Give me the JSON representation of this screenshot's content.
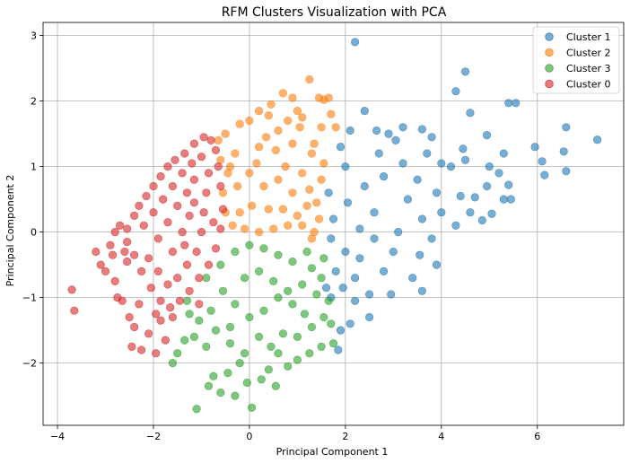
{
  "chart_data": {
    "type": "scatter",
    "title": "RFM Clusters Visualization with PCA",
    "xlabel": "Principal Component 1",
    "ylabel": "Principal Component 2",
    "xlim": [
      -4.3,
      7.8
    ],
    "ylim": [
      -2.95,
      3.2
    ],
    "xticks": [
      -4,
      -2,
      0,
      2,
      4,
      6
    ],
    "yticks": [
      -2,
      -1,
      0,
      1,
      2,
      3
    ],
    "grid": true,
    "legend_position": "top-right",
    "series": [
      {
        "name": "Cluster 1",
        "color": "#1f77b4",
        "points": [
          [
            2.2,
            2.9
          ],
          [
            4.5,
            2.45
          ],
          [
            4.3,
            2.15
          ],
          [
            4.6,
            1.82
          ],
          [
            5.4,
            1.97
          ],
          [
            5.55,
            1.97
          ],
          [
            6.6,
            1.6
          ],
          [
            7.25,
            1.41
          ],
          [
            5.95,
            1.3
          ],
          [
            6.1,
            1.08
          ],
          [
            6.15,
            0.87
          ],
          [
            6.6,
            0.93
          ],
          [
            6.55,
            1.23
          ],
          [
            5.3,
            1.2
          ],
          [
            5.0,
            1.0
          ],
          [
            5.4,
            0.72
          ],
          [
            5.45,
            0.5
          ],
          [
            5.3,
            0.5
          ],
          [
            4.95,
            1.48
          ],
          [
            4.45,
            1.27
          ],
          [
            3.6,
            1.57
          ],
          [
            3.7,
            1.2
          ],
          [
            3.2,
            1.6
          ],
          [
            2.4,
            1.85
          ],
          [
            2.9,
            1.5
          ],
          [
            3.05,
            1.4
          ],
          [
            4.0,
            1.05
          ],
          [
            4.7,
            0.53
          ],
          [
            5.05,
            0.28
          ],
          [
            4.85,
            0.18
          ],
          [
            4.6,
            0.3
          ],
          [
            4.3,
            0.1
          ],
          [
            3.8,
            -0.1
          ],
          [
            4.4,
            0.55
          ],
          [
            3.5,
            0.8
          ],
          [
            2.7,
            1.2
          ],
          [
            4.2,
            1.0
          ],
          [
            3.9,
            0.6
          ],
          [
            3.6,
            0.2
          ],
          [
            3.3,
            0.5
          ],
          [
            2.6,
            0.3
          ],
          [
            2.3,
            0.05
          ],
          [
            3.0,
            -0.3
          ],
          [
            2.8,
            -0.6
          ],
          [
            3.4,
            -0.7
          ],
          [
            3.9,
            -0.5
          ],
          [
            2.5,
            -0.95
          ],
          [
            2.2,
            -1.05
          ],
          [
            2.5,
            -1.3
          ],
          [
            2.1,
            -1.4
          ],
          [
            1.9,
            -1.5
          ],
          [
            1.85,
            -1.8
          ],
          [
            2.2,
            -0.7
          ],
          [
            2.0,
            -0.3
          ],
          [
            2.4,
            0.7
          ],
          [
            2.0,
            1.0
          ],
          [
            1.9,
            1.3
          ],
          [
            2.1,
            1.55
          ],
          [
            1.75,
            0.2
          ],
          [
            1.65,
            0.6
          ],
          [
            1.7,
            -0.1
          ],
          [
            1.8,
            -0.6
          ],
          [
            1.6,
            -0.85
          ],
          [
            1.7,
            -1.0
          ],
          [
            3.1,
            0.0
          ],
          [
            3.55,
            -0.35
          ],
          [
            4.0,
            0.3
          ],
          [
            4.95,
            0.7
          ],
          [
            5.2,
            0.9
          ],
          [
            3.2,
            1.05
          ],
          [
            2.8,
            0.85
          ],
          [
            2.6,
            -0.1
          ],
          [
            3.6,
            -0.9
          ],
          [
            2.95,
            -0.95
          ],
          [
            2.3,
            -0.4
          ],
          [
            2.05,
            0.45
          ],
          [
            1.95,
            -0.85
          ],
          [
            3.8,
            1.45
          ],
          [
            4.5,
            1.1
          ],
          [
            2.65,
            1.55
          ]
        ]
      },
      {
        "name": "Cluster 2",
        "color": "#ff7f0e",
        "points": [
          [
            1.25,
            2.33
          ],
          [
            1.55,
            2.02
          ],
          [
            1.45,
            2.05
          ],
          [
            1.65,
            2.05
          ],
          [
            0.7,
            2.12
          ],
          [
            0.9,
            2.05
          ],
          [
            0.45,
            1.95
          ],
          [
            0.2,
            1.85
          ],
          [
            0.4,
            1.78
          ],
          [
            1.0,
            1.85
          ],
          [
            1.1,
            1.75
          ],
          [
            0.8,
            1.7
          ],
          [
            1.5,
            1.6
          ],
          [
            1.7,
            1.8
          ],
          [
            1.8,
            1.6
          ],
          [
            1.35,
            1.35
          ],
          [
            1.05,
            1.6
          ],
          [
            0.6,
            1.55
          ],
          [
            0.0,
            1.7
          ],
          [
            -0.2,
            1.65
          ],
          [
            -0.5,
            1.5
          ],
          [
            -0.65,
            1.4
          ],
          [
            -0.3,
            1.2
          ],
          [
            0.2,
            1.3
          ],
          [
            0.55,
            1.25
          ],
          [
            0.9,
            1.35
          ],
          [
            1.3,
            1.2
          ],
          [
            1.55,
            1.05
          ],
          [
            1.5,
            0.8
          ],
          [
            1.4,
            0.45
          ],
          [
            1.45,
            0.2
          ],
          [
            1.35,
            0.0
          ],
          [
            1.3,
            -0.1
          ],
          [
            1.1,
            0.1
          ],
          [
            0.8,
            0.1
          ],
          [
            0.5,
            0.05
          ],
          [
            0.2,
            0.0
          ],
          [
            -0.1,
            0.05
          ],
          [
            -0.35,
            0.1
          ],
          [
            -0.5,
            0.3
          ],
          [
            -0.55,
            0.6
          ],
          [
            -0.45,
            0.9
          ],
          [
            -0.25,
            0.7
          ],
          [
            0.0,
            0.9
          ],
          [
            0.3,
            0.7
          ],
          [
            0.6,
            0.8
          ],
          [
            0.9,
            0.6
          ],
          [
            1.1,
            0.9
          ],
          [
            1.2,
            0.4
          ],
          [
            0.4,
            0.35
          ],
          [
            0.05,
            0.4
          ],
          [
            -0.2,
            0.3
          ],
          [
            0.7,
            0.35
          ],
          [
            1.0,
            0.25
          ],
          [
            -0.4,
            1.0
          ],
          [
            0.15,
            1.05
          ],
          [
            0.75,
            1.0
          ],
          [
            1.25,
            0.65
          ],
          [
            -0.6,
            1.1
          ],
          [
            0.35,
            1.45
          ]
        ]
      },
      {
        "name": "Cluster 3",
        "color": "#2ca02c",
        "points": [
          [
            -1.1,
            -2.7
          ],
          [
            0.05,
            -2.68
          ],
          [
            -0.85,
            -2.35
          ],
          [
            -0.6,
            -2.45
          ],
          [
            -0.3,
            -2.5
          ],
          [
            -0.75,
            -2.2
          ],
          [
            -0.45,
            -2.15
          ],
          [
            -0.05,
            -2.3
          ],
          [
            0.25,
            -2.25
          ],
          [
            0.55,
            -2.35
          ],
          [
            0.4,
            -2.1
          ],
          [
            0.8,
            -2.05
          ],
          [
            1.0,
            -1.95
          ],
          [
            1.25,
            -1.85
          ],
          [
            1.5,
            -1.75
          ],
          [
            1.75,
            -1.7
          ],
          [
            -1.6,
            -2.0
          ],
          [
            -1.5,
            -1.85
          ],
          [
            -1.35,
            -1.65
          ],
          [
            -1.15,
            -1.6
          ],
          [
            -0.9,
            -1.75
          ],
          [
            -0.7,
            -1.5
          ],
          [
            -0.4,
            -1.7
          ],
          [
            -0.1,
            -1.85
          ],
          [
            0.2,
            -1.6
          ],
          [
            0.45,
            -1.75
          ],
          [
            0.7,
            -1.55
          ],
          [
            1.0,
            -1.6
          ],
          [
            1.3,
            -1.45
          ],
          [
            1.55,
            -1.3
          ],
          [
            1.65,
            -1.05
          ],
          [
            1.4,
            -0.95
          ],
          [
            1.5,
            -0.7
          ],
          [
            1.55,
            -0.4
          ],
          [
            1.3,
            -0.55
          ],
          [
            1.1,
            -0.8
          ],
          [
            0.9,
            -1.1
          ],
          [
            0.6,
            -1.0
          ],
          [
            0.3,
            -1.2
          ],
          [
            0.0,
            -1.3
          ],
          [
            -0.3,
            -1.1
          ],
          [
            -0.55,
            -0.9
          ],
          [
            -0.8,
            -1.2
          ],
          [
            -1.05,
            -1.35
          ],
          [
            -1.25,
            -1.25
          ],
          [
            -0.9,
            -0.7
          ],
          [
            -0.6,
            -0.5
          ],
          [
            -0.3,
            -0.3
          ],
          [
            0.0,
            -0.2
          ],
          [
            0.3,
            -0.25
          ],
          [
            0.6,
            -0.35
          ],
          [
            0.9,
            -0.45
          ],
          [
            1.2,
            -0.3
          ],
          [
            0.2,
            -0.6
          ],
          [
            -0.1,
            -0.7
          ],
          [
            0.5,
            -0.75
          ],
          [
            0.8,
            -0.9
          ],
          [
            -0.4,
            -1.45
          ],
          [
            -1.3,
            -1.05
          ],
          [
            1.7,
            -1.4
          ],
          [
            -0.2,
            -2.0
          ],
          [
            0.6,
            -1.85
          ],
          [
            1.15,
            -1.25
          ]
        ]
      },
      {
        "name": "Cluster 0",
        "color": "#d62728",
        "points": [
          [
            -3.7,
            -0.88
          ],
          [
            -3.65,
            -1.2
          ],
          [
            -3.2,
            -0.3
          ],
          [
            -3.1,
            -0.5
          ],
          [
            -3.0,
            -0.6
          ],
          [
            -2.85,
            -0.35
          ],
          [
            -2.8,
            -0.75
          ],
          [
            -2.75,
            -1.0
          ],
          [
            -2.65,
            -1.05
          ],
          [
            -2.6,
            -0.3
          ],
          [
            -2.55,
            -0.45
          ],
          [
            -2.5,
            -1.3
          ],
          [
            -2.45,
            -1.75
          ],
          [
            -2.4,
            -1.45
          ],
          [
            -2.25,
            -1.8
          ],
          [
            -2.1,
            -1.55
          ],
          [
            -1.95,
            -1.85
          ],
          [
            -1.85,
            -1.35
          ],
          [
            -1.75,
            -1.65
          ],
          [
            -1.6,
            -1.3
          ],
          [
            -2.8,
            0.0
          ],
          [
            -2.7,
            0.1
          ],
          [
            -2.55,
            0.05
          ],
          [
            -2.4,
            0.25
          ],
          [
            -2.3,
            0.4
          ],
          [
            -2.15,
            0.55
          ],
          [
            -2.0,
            0.7
          ],
          [
            -1.85,
            0.85
          ],
          [
            -1.7,
            1.0
          ],
          [
            -1.55,
            1.1
          ],
          [
            -1.35,
            1.2
          ],
          [
            -1.15,
            1.35
          ],
          [
            -0.95,
            1.45
          ],
          [
            -0.8,
            1.4
          ],
          [
            -0.7,
            1.25
          ],
          [
            -0.65,
            1.0
          ],
          [
            -0.6,
            0.7
          ],
          [
            -0.55,
            0.35
          ],
          [
            -0.6,
            0.05
          ],
          [
            -0.7,
            -0.25
          ],
          [
            -0.85,
            -0.5
          ],
          [
            -1.05,
            -0.7
          ],
          [
            -1.25,
            -0.9
          ],
          [
            -1.45,
            -1.05
          ],
          [
            -1.65,
            -1.15
          ],
          [
            -1.85,
            -1.05
          ],
          [
            -2.05,
            -0.85
          ],
          [
            -2.25,
            -0.6
          ],
          [
            -2.4,
            -0.35
          ],
          [
            -2.55,
            -0.15
          ],
          [
            -2.2,
            0.1
          ],
          [
            -2.0,
            0.3
          ],
          [
            -1.8,
            0.5
          ],
          [
            -1.6,
            0.7
          ],
          [
            -1.4,
            0.9
          ],
          [
            -1.2,
            1.05
          ],
          [
            -1.0,
            1.15
          ],
          [
            -0.85,
            0.9
          ],
          [
            -0.9,
            0.6
          ],
          [
            -0.95,
            0.3
          ],
          [
            -1.0,
            0.0
          ],
          [
            -1.1,
            -0.3
          ],
          [
            -1.3,
            -0.5
          ],
          [
            -1.5,
            -0.7
          ],
          [
            -1.7,
            -0.8
          ],
          [
            -1.9,
            -0.6
          ],
          [
            -2.1,
            -0.4
          ],
          [
            -1.9,
            -0.1
          ],
          [
            -1.7,
            0.15
          ],
          [
            -1.5,
            0.4
          ],
          [
            -1.3,
            0.6
          ],
          [
            -1.15,
            0.8
          ],
          [
            -1.25,
            0.25
          ],
          [
            -1.4,
            0.0
          ],
          [
            -1.6,
            -0.3
          ],
          [
            -1.35,
            -0.2
          ],
          [
            -1.15,
            0.45
          ],
          [
            -0.75,
            0.15
          ],
          [
            -2.9,
            -0.2
          ],
          [
            -2.3,
            -1.1
          ],
          [
            -1.95,
            -1.25
          ],
          [
            -1.05,
            -1.1
          ]
        ]
      }
    ]
  }
}
